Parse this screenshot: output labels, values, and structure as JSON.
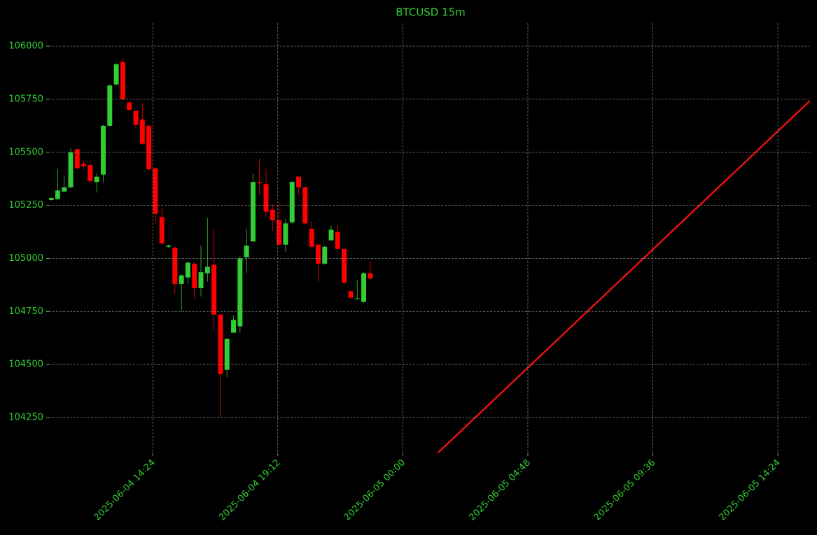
{
  "chart_data": {
    "type": "candlestick",
    "title": "BTCUSD 15m",
    "up_color": "#32cd32",
    "down_color": "#ff0000",
    "grid": true,
    "x": [
      "2025-06-04 10:30",
      "2025-06-04 10:45",
      "2025-06-04 11:00",
      "2025-06-04 11:15",
      "2025-06-04 11:30",
      "2025-06-04 11:45",
      "2025-06-04 12:00",
      "2025-06-04 12:15",
      "2025-06-04 12:30",
      "2025-06-04 12:45",
      "2025-06-04 13:00",
      "2025-06-04 13:15",
      "2025-06-04 13:30",
      "2025-06-04 13:45",
      "2025-06-04 14:00",
      "2025-06-04 14:15",
      "2025-06-04 14:30",
      "2025-06-04 14:45",
      "2025-06-04 15:00",
      "2025-06-04 15:15",
      "2025-06-04 15:30",
      "2025-06-04 15:45",
      "2025-06-04 16:00",
      "2025-06-04 16:15",
      "2025-06-04 16:30",
      "2025-06-04 16:45",
      "2025-06-04 17:00",
      "2025-06-04 17:15",
      "2025-06-04 17:30",
      "2025-06-04 17:45",
      "2025-06-04 18:00",
      "2025-06-04 18:15",
      "2025-06-04 18:30",
      "2025-06-04 18:45",
      "2025-06-04 19:00",
      "2025-06-04 19:15",
      "2025-06-04 19:30",
      "2025-06-04 19:45",
      "2025-06-04 20:00",
      "2025-06-04 20:15",
      "2025-06-04 20:30",
      "2025-06-04 20:45",
      "2025-06-04 21:00",
      "2025-06-04 21:15",
      "2025-06-04 21:30",
      "2025-06-04 21:45",
      "2025-06-04 22:00",
      "2025-06-04 22:15",
      "2025-06-04 22:30",
      "2025-06-04 22:45"
    ],
    "open": [
      105275,
      105280,
      105315,
      105335,
      105515,
      105445,
      105440,
      105360,
      105395,
      105625,
      105820,
      105925,
      105735,
      105695,
      105655,
      105625,
      105425,
      105195,
      105055,
      105050,
      104880,
      104910,
      104975,
      104860,
      104930,
      104970,
      104735,
      104475,
      104650,
      104680,
      105005,
      105080,
      105360,
      105350,
      105230,
      105180,
      105065,
      105170,
      105385,
      105335,
      105140,
      105065,
      104975,
      105085,
      105125,
      105045,
      104845,
      104810,
      104795,
      104930
    ],
    "high": [
      105287,
      105420,
      105390,
      105520,
      105515,
      105460,
      105455,
      105400,
      105630,
      105820,
      105920,
      105945,
      105740,
      105700,
      105730,
      105630,
      105430,
      105240,
      105065,
      105055,
      104925,
      104985,
      104985,
      105060,
      105190,
      105140,
      104740,
      104625,
      104730,
      105010,
      105140,
      105400,
      105470,
      105420,
      105255,
      105260,
      105185,
      105365,
      105385,
      105340,
      105175,
      105065,
      105060,
      105155,
      105160,
      105050,
      104850,
      104900,
      104935,
      104985
    ],
    "low": [
      105273,
      105275,
      105310,
      105330,
      105420,
      105420,
      105355,
      105310,
      105360,
      105620,
      105815,
      105745,
      105695,
      105615,
      105535,
      105415,
      105165,
      105065,
      105050,
      104830,
      104750,
      104880,
      104810,
      104820,
      104890,
      104660,
      104250,
      104440,
      104650,
      104650,
      104930,
      105075,
      105300,
      105195,
      105130,
      105060,
      105030,
      105160,
      105300,
      105160,
      105050,
      104890,
      104970,
      105085,
      105040,
      104875,
      104810,
      104805,
      104790,
      104900
    ],
    "close": [
      105285,
      105320,
      105335,
      105500,
      105425,
      105435,
      105365,
      105385,
      105625,
      105815,
      105915,
      105750,
      105700,
      105630,
      105540,
      105420,
      105210,
      105070,
      105060,
      104880,
      104920,
      104980,
      104860,
      104935,
      104960,
      104735,
      104455,
      104620,
      104710,
      105000,
      105060,
      105360,
      105355,
      105220,
      105180,
      105065,
      105165,
      105360,
      105335,
      105165,
      105055,
      104975,
      105055,
      105135,
      105045,
      104885,
      104815,
      104812,
      104930,
      104905
    ],
    "line": {
      "color": "#e61010",
      "x": [
        "2025-06-05 01:20",
        "2025-06-05 15:38"
      ],
      "y": [
        104082,
        105743
      ]
    },
    "xlim": [
      "2025-06-04 10:25",
      "2025-06-05 15:38"
    ],
    "xticks": [
      "2025-06-04 14:24",
      "2025-06-04 19:12",
      "2025-06-05 00:00",
      "2025-06-05 04:48",
      "2025-06-05 09:36",
      "2025-06-05 14:24"
    ],
    "ylim": [
      104082,
      106109
    ],
    "yticks": [
      104250,
      104500,
      104750,
      105000,
      105250,
      105500,
      105750,
      106000
    ]
  }
}
